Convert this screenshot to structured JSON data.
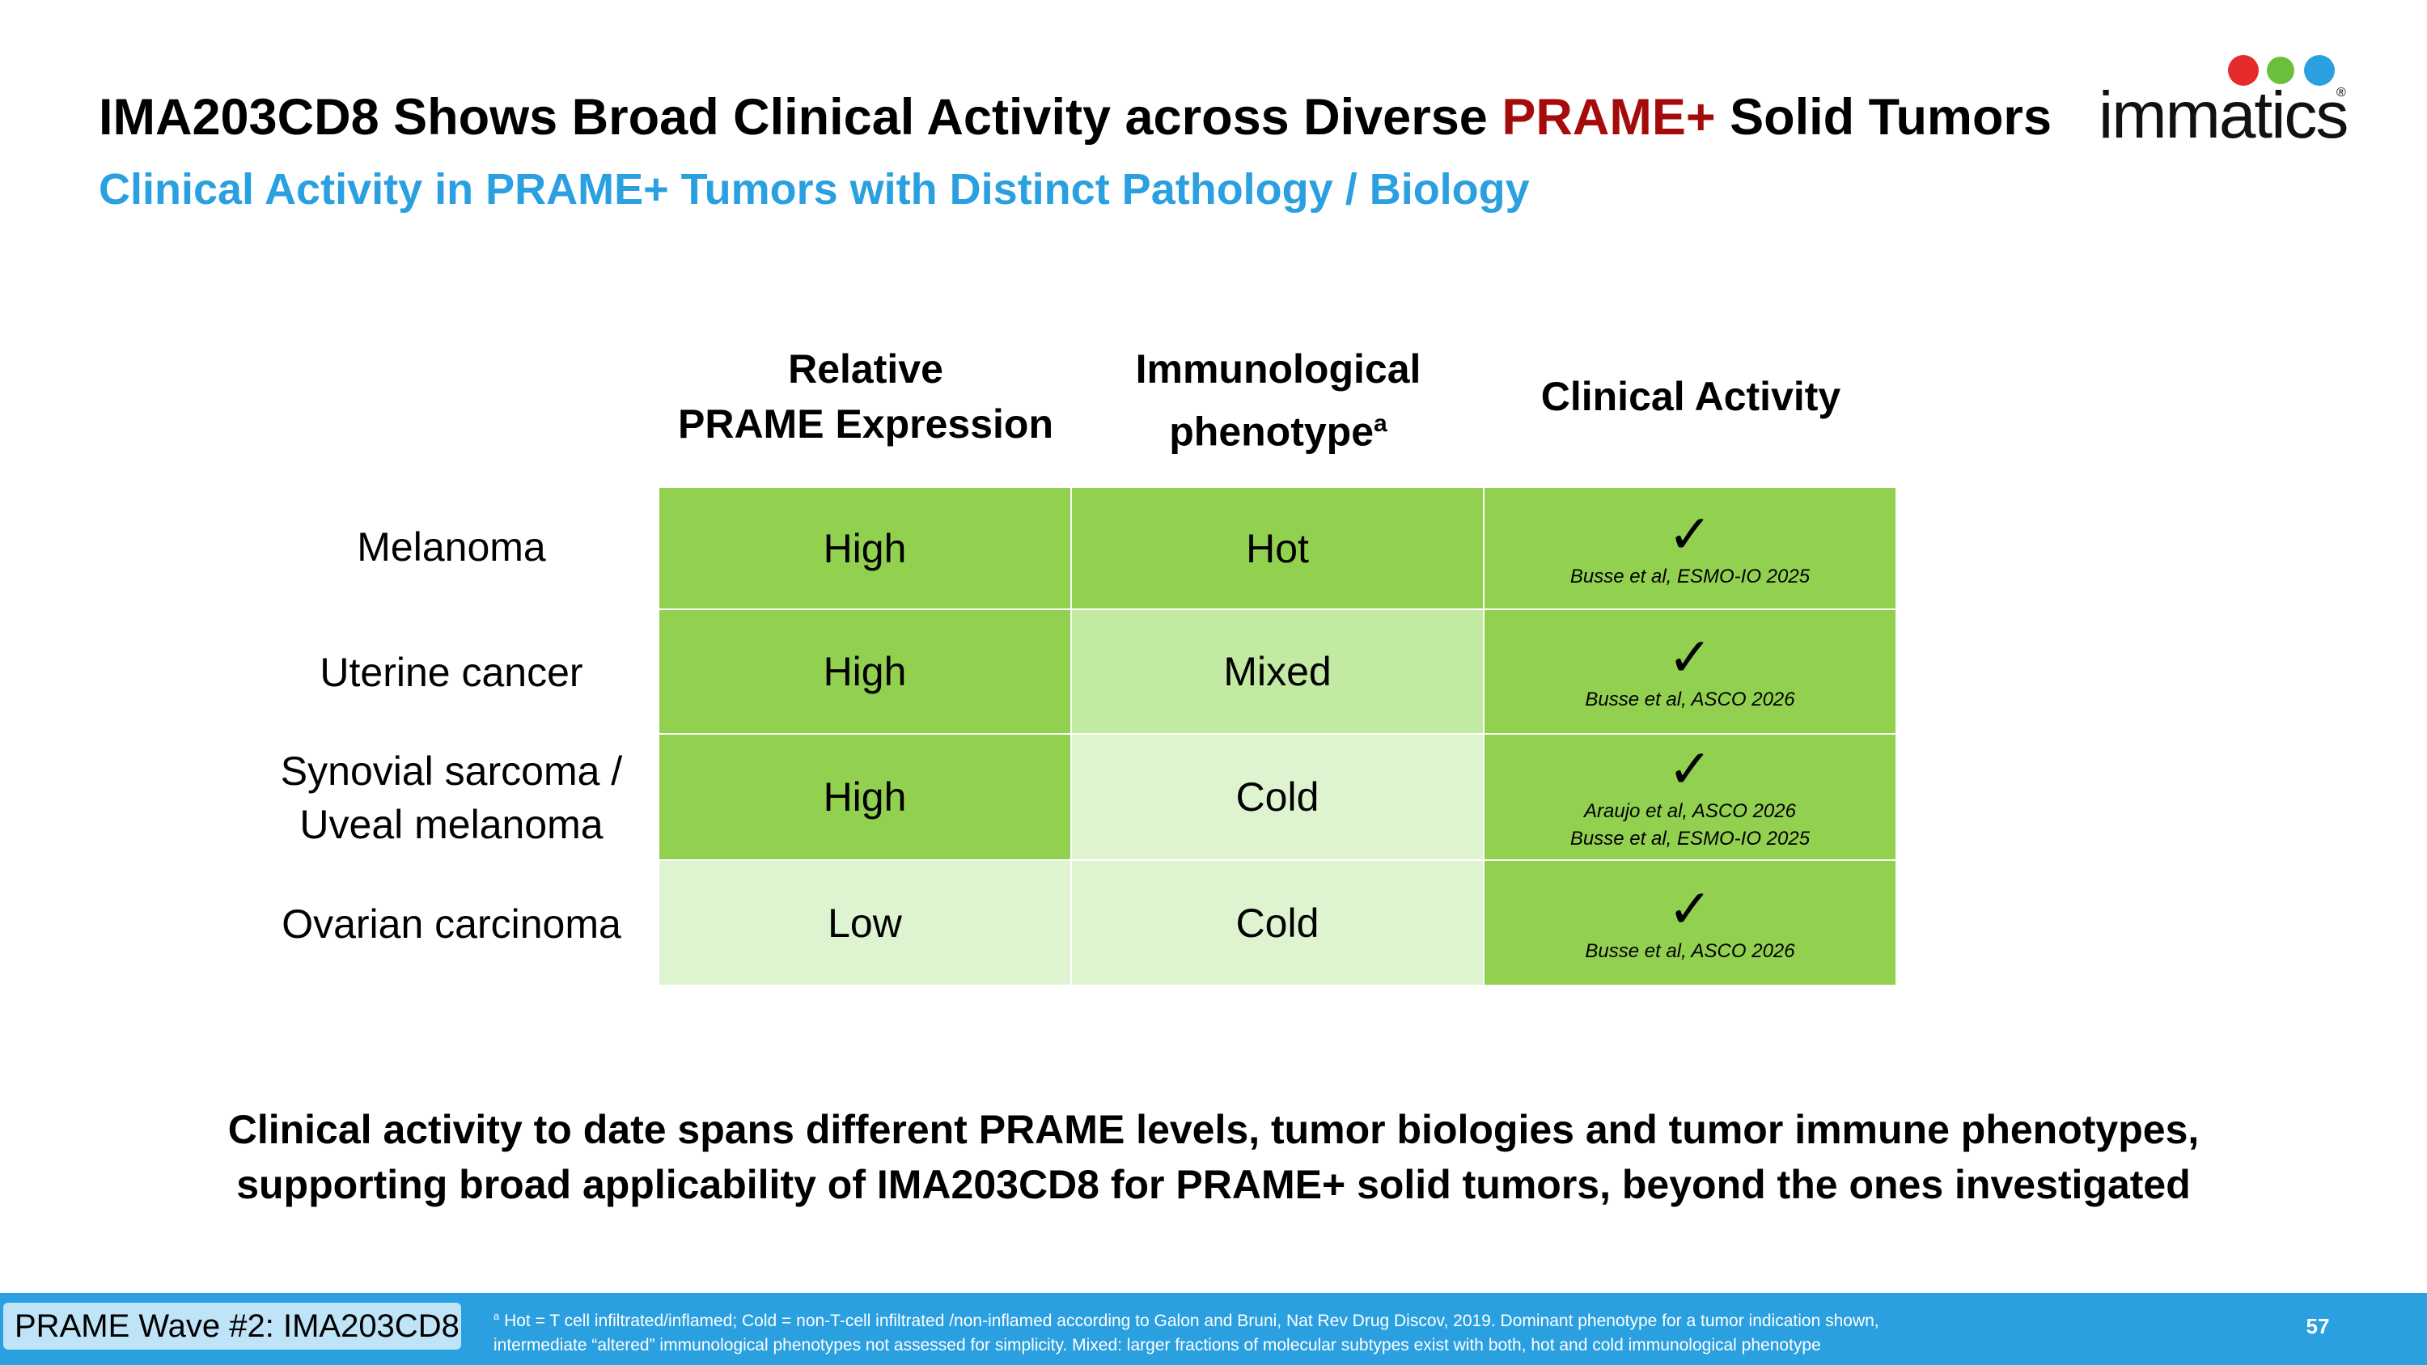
{
  "header": {
    "title_part1": "IMA203CD8 Shows Broad Clinical Activity across Diverse ",
    "title_accent": "PRAME+",
    "title_part2": " Solid Tumors",
    "subtitle": "Clinical Activity in PRAME+ Tumors with Distinct Pathology / Biology",
    "logo_text": "immatics",
    "logo_mark": "®"
  },
  "table": {
    "columns": {
      "expression_line1": "Relative",
      "expression_line2": "PRAME Expression",
      "phenotype_line1": "Immunological",
      "phenotype_line2": "phenotype",
      "phenotype_sup": "a",
      "activity": "Clinical Activity"
    },
    "rows": [
      {
        "label1": "Melanoma",
        "label2": "",
        "expression": "High",
        "phenotype": "Hot",
        "check": "✓",
        "ref1": "Busse et al, ESMO-IO 2025",
        "ref2": ""
      },
      {
        "label1": "Uterine cancer",
        "label2": "",
        "expression": "High",
        "phenotype": "Mixed",
        "check": "✓",
        "ref1": "Busse et al, ASCO 2026",
        "ref2": ""
      },
      {
        "label1": "Synovial sarcoma /",
        "label2": "Uveal melanoma",
        "expression": "High",
        "phenotype": "Cold",
        "check": "✓",
        "ref1": "Araujo et al, ASCO 2026",
        "ref2": "Busse et al, ESMO-IO 2025"
      },
      {
        "label1": "Ovarian carcinoma",
        "label2": "",
        "expression": "Low",
        "phenotype": "Cold",
        "check": "✓",
        "ref1": "Busse et al, ASCO 2026",
        "ref2": ""
      }
    ]
  },
  "conclusion": {
    "line1": "Clinical activity to date spans different PRAME levels, tumor biologies and tumor immune phenotypes,",
    "line2": "supporting broad applicability of IMA203CD8 for PRAME+ solid tumors, beyond the ones investigated"
  },
  "footer": {
    "tag": "PRAME Wave #2: IMA203CD8",
    "footnote_sup": "a",
    "footnote_line1": " Hot = T cell infiltrated/inflamed; Cold = non-T-cell infiltrated /non-inflamed according to Galon and Bruni, Nat Rev Drug Discov, 2019. Dominant phenotype for a tumor indication shown,",
    "footnote_line2": "intermediate “altered” immunological phenotypes not assessed for simplicity. Mixed: larger fractions of molecular subtypes exist with both, hot and cold immunological phenotype",
    "page_number": "57"
  },
  "colors": {
    "accent_red": "#a50b0b",
    "subtitle_blue": "#2aa0e0",
    "green_high": "#92d050",
    "green_mixed": "#c2eaa2",
    "green_low": "#def4d0",
    "footer_blue": "#2aa0e0"
  }
}
